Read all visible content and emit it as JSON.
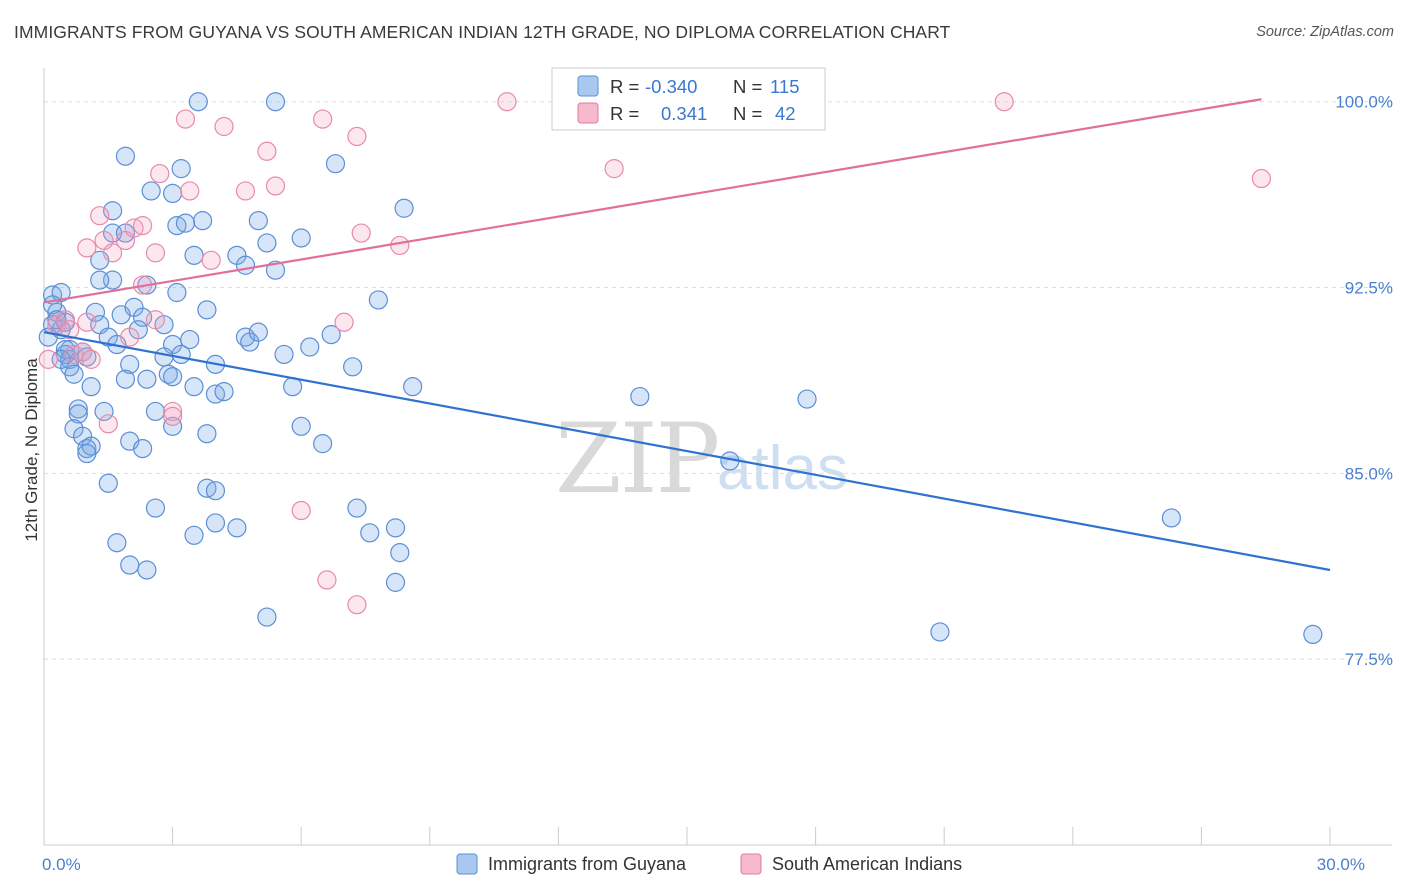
{
  "title": "IMMIGRANTS FROM GUYANA VS SOUTH AMERICAN INDIAN 12TH GRADE, NO DIPLOMA CORRELATION CHART",
  "source": "Source: ZipAtlas.com",
  "watermark": {
    "zip": "ZIP",
    "atlas": "atlas"
  },
  "legend": {
    "rows": [
      {
        "r_label": "R =",
        "r_value": "-0.340",
        "n_label": "N =",
        "n_value": "115",
        "color": "#a9c8f0",
        "stroke": "#5b8fd6"
      },
      {
        "r_label": "R =",
        "r_value": "0.341",
        "n_label": "N =",
        "n_value": "42",
        "color": "#f6b9cd",
        "stroke": "#e07aa0"
      }
    ]
  },
  "bottom_legend": [
    {
      "label": "Immigrants from Guyana",
      "color": "#a9c8f0",
      "stroke": "#5b8fd6"
    },
    {
      "label": "South American Indians",
      "color": "#f6b9cd",
      "stroke": "#e07aa0"
    }
  ],
  "colors": {
    "blue_fill": "rgba(120,170,230,0.30)",
    "blue_stroke": "#5b8fd6",
    "blue_line": "#2f72d0",
    "pink_fill": "rgba(245,160,190,0.25)",
    "pink_stroke": "#e88aaa",
    "pink_line": "#e0709a",
    "grid": "#dddddd",
    "axis_text": "#4a7fd0"
  },
  "chart_data": {
    "type": "scatter",
    "title": "IMMIGRANTS FROM GUYANA VS SOUTH AMERICAN INDIAN 12TH GRADE, NO DIPLOMA CORRELATION CHART",
    "xlabel": "",
    "ylabel": "12th Grade, No Diploma",
    "xlim": [
      0,
      30
    ],
    "ylim": [
      70.0,
      101.2
    ],
    "x_tick_labels": [
      {
        "value": 0,
        "label": "0.0%"
      },
      {
        "value": 30,
        "label": "30.0%"
      }
    ],
    "y_ticks": [
      {
        "value": 100.0,
        "label": "100.0%"
      },
      {
        "value": 92.5,
        "label": "92.5%"
      },
      {
        "value": 85.0,
        "label": "85.0%"
      },
      {
        "value": 77.5,
        "label": "77.5%"
      }
    ],
    "grid": true,
    "legend_position": "top-center",
    "series": [
      {
        "name": "Immigrants from Guyana",
        "r": -0.34,
        "n": 115,
        "trend": {
          "x": [
            0,
            30
          ],
          "y": [
            90.7,
            81.1
          ]
        },
        "points": [
          [
            0.2,
            92.2
          ],
          [
            0.4,
            92.3
          ],
          [
            0.3,
            91.5
          ],
          [
            0.5,
            91.1
          ],
          [
            0.2,
            91.0
          ],
          [
            0.4,
            90.8
          ],
          [
            0.6,
            90.0
          ],
          [
            0.5,
            89.8
          ],
          [
            0.6,
            89.6
          ],
          [
            0.6,
            89.3
          ],
          [
            0.9,
            89.9
          ],
          [
            1.0,
            89.7
          ],
          [
            0.8,
            87.6
          ],
          [
            0.8,
            87.4
          ],
          [
            0.7,
            86.8
          ],
          [
            0.9,
            86.5
          ],
          [
            1.0,
            86.0
          ],
          [
            1.1,
            86.1
          ],
          [
            1.0,
            85.8
          ],
          [
            1.4,
            87.5
          ],
          [
            1.5,
            84.6
          ],
          [
            1.7,
            82.2
          ],
          [
            2.0,
            81.3
          ],
          [
            2.4,
            81.1
          ],
          [
            1.2,
            91.5
          ],
          [
            1.3,
            91.0
          ],
          [
            1.5,
            90.5
          ],
          [
            1.8,
            91.4
          ],
          [
            2.1,
            91.7
          ],
          [
            2.3,
            91.3
          ],
          [
            1.6,
            92.8
          ],
          [
            1.3,
            92.8
          ],
          [
            1.3,
            93.6
          ],
          [
            1.6,
            94.7
          ],
          [
            1.9,
            94.7
          ],
          [
            1.6,
            95.6
          ],
          [
            1.9,
            97.8
          ],
          [
            2.5,
            96.4
          ],
          [
            3.0,
            96.3
          ],
          [
            3.2,
            97.3
          ],
          [
            3.1,
            95.0
          ],
          [
            3.7,
            95.2
          ],
          [
            3.3,
            95.1
          ],
          [
            3.5,
            93.8
          ],
          [
            4.5,
            93.8
          ],
          [
            4.7,
            93.4
          ],
          [
            3.1,
            92.3
          ],
          [
            3.8,
            91.6
          ],
          [
            2.4,
            92.6
          ],
          [
            3.0,
            90.2
          ],
          [
            3.4,
            90.4
          ],
          [
            2.8,
            89.7
          ],
          [
            3.2,
            89.8
          ],
          [
            2.9,
            89.0
          ],
          [
            3.0,
            88.9
          ],
          [
            2.0,
            89.4
          ],
          [
            1.9,
            88.8
          ],
          [
            2.4,
            88.8
          ],
          [
            2.6,
            87.5
          ],
          [
            3.0,
            86.9
          ],
          [
            3.5,
            88.5
          ],
          [
            4.0,
            88.2
          ],
          [
            4.2,
            88.3
          ],
          [
            4.0,
            89.4
          ],
          [
            3.8,
            86.6
          ],
          [
            2.0,
            86.3
          ],
          [
            2.3,
            86.0
          ],
          [
            2.6,
            83.6
          ],
          [
            3.5,
            82.5
          ],
          [
            3.8,
            84.4
          ],
          [
            4.0,
            84.3
          ],
          [
            4.0,
            83.0
          ],
          [
            4.5,
            82.8
          ],
          [
            3.6,
            100.0
          ],
          [
            5.4,
            100.0
          ],
          [
            6.8,
            97.5
          ],
          [
            5.0,
            95.2
          ],
          [
            5.2,
            94.3
          ],
          [
            5.4,
            93.2
          ],
          [
            4.7,
            90.5
          ],
          [
            4.8,
            90.3
          ],
          [
            5.0,
            90.7
          ],
          [
            5.6,
            89.8
          ],
          [
            5.8,
            88.5
          ],
          [
            6.2,
            90.1
          ],
          [
            6.7,
            90.6
          ],
          [
            7.2,
            89.3
          ],
          [
            6.0,
            86.9
          ],
          [
            6.5,
            86.2
          ],
          [
            7.3,
            83.6
          ],
          [
            7.6,
            82.6
          ],
          [
            8.2,
            82.8
          ],
          [
            8.3,
            81.8
          ],
          [
            8.2,
            80.6
          ],
          [
            7.8,
            92.0
          ],
          [
            8.4,
            95.7
          ],
          [
            8.6,
            88.5
          ],
          [
            6.0,
            94.5
          ],
          [
            5.2,
            79.2
          ],
          [
            13.9,
            88.1
          ],
          [
            17.8,
            88.0
          ],
          [
            16.0,
            85.5
          ],
          [
            20.9,
            78.6
          ],
          [
            26.3,
            83.2
          ],
          [
            29.6,
            78.5
          ],
          [
            0.1,
            90.5
          ],
          [
            0.2,
            91.8
          ],
          [
            0.3,
            91.2
          ],
          [
            0.5,
            90.0
          ],
          [
            0.4,
            89.6
          ],
          [
            0.7,
            89.0
          ],
          [
            1.1,
            88.5
          ],
          [
            2.2,
            90.8
          ],
          [
            1.7,
            90.2
          ],
          [
            2.8,
            91.0
          ]
        ]
      },
      {
        "name": "South American Indians",
        "r": 0.341,
        "n": 42,
        "trend": {
          "x": [
            0,
            28.4
          ],
          "y": [
            91.9,
            100.1
          ]
        },
        "points": [
          [
            0.3,
            91.0
          ],
          [
            0.5,
            91.2
          ],
          [
            0.6,
            90.8
          ],
          [
            0.7,
            89.8
          ],
          [
            0.9,
            89.9
          ],
          [
            1.1,
            89.6
          ],
          [
            1.0,
            91.1
          ],
          [
            1.0,
            94.1
          ],
          [
            1.3,
            95.4
          ],
          [
            1.4,
            94.4
          ],
          [
            1.6,
            93.9
          ],
          [
            1.9,
            94.4
          ],
          [
            2.1,
            94.9
          ],
          [
            2.3,
            95.0
          ],
          [
            2.6,
            93.9
          ],
          [
            2.3,
            92.6
          ],
          [
            2.0,
            90.5
          ],
          [
            2.6,
            91.2
          ],
          [
            3.0,
            87.5
          ],
          [
            3.0,
            87.3
          ],
          [
            2.7,
            97.1
          ],
          [
            3.3,
            99.3
          ],
          [
            3.4,
            96.4
          ],
          [
            4.2,
            99.0
          ],
          [
            3.9,
            93.6
          ],
          [
            4.7,
            96.4
          ],
          [
            5.2,
            98.0
          ],
          [
            5.4,
            96.6
          ],
          [
            6.5,
            99.3
          ],
          [
            7.3,
            98.6
          ],
          [
            7.4,
            94.7
          ],
          [
            8.3,
            94.2
          ],
          [
            7.0,
            91.1
          ],
          [
            6.0,
            83.5
          ],
          [
            6.6,
            80.7
          ],
          [
            7.3,
            79.7
          ],
          [
            10.8,
            100.0
          ],
          [
            13.3,
            97.3
          ],
          [
            22.4,
            100.0
          ],
          [
            28.4,
            96.9
          ],
          [
            1.5,
            87.0
          ],
          [
            0.1,
            89.6
          ]
        ]
      }
    ]
  }
}
